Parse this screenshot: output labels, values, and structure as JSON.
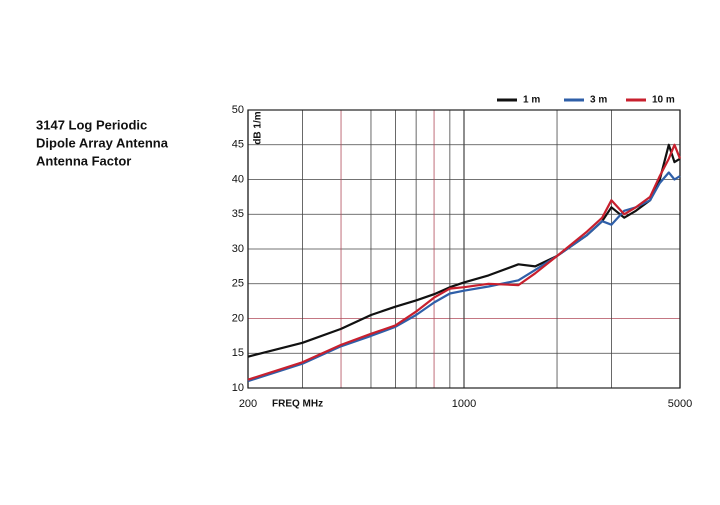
{
  "chart_data": {
    "type": "line",
    "title": [
      "3147 Log Periodic",
      "Dipole Array Antenna",
      "Antenna Factor"
    ],
    "xlabel": "FREQ MHz",
    "ylabel": "dB 1/m",
    "xscale": "log",
    "x": [
      200,
      300,
      400,
      500,
      600,
      700,
      800,
      900,
      1000,
      1200,
      1500,
      1700,
      2000,
      2500,
      2800,
      3000,
      3300,
      3600,
      4000,
      4300,
      4600,
      4800,
      5000
    ],
    "series": [
      {
        "name": "1 m",
        "color": "#111111",
        "values": [
          14.5,
          16.5,
          18.5,
          20.5,
          21.7,
          22.6,
          23.5,
          24.5,
          25.2,
          26.2,
          27.8,
          27.5,
          29,
          32,
          34,
          36,
          34.5,
          35.5,
          37,
          40,
          45,
          42.5,
          43
        ]
      },
      {
        "name": "3 m",
        "color": "#2f5fa8",
        "values": [
          11,
          13.5,
          16,
          17.5,
          18.8,
          20.5,
          22.3,
          23.6,
          24,
          24.6,
          25.5,
          27,
          29,
          32,
          34,
          33.5,
          35.5,
          36,
          37,
          39.5,
          41,
          40,
          40.5
        ]
      },
      {
        "name": "10 m",
        "color": "#c8202e",
        "values": [
          11.2,
          13.7,
          16.2,
          17.8,
          19,
          21,
          23,
          24.3,
          24.5,
          25,
          24.8,
          26.5,
          29,
          32.5,
          34.5,
          37,
          35,
          36,
          37.5,
          40.5,
          43,
          45,
          43
        ]
      }
    ],
    "xlim": [
      200,
      5000
    ],
    "xticks": [
      200,
      1000,
      5000
    ],
    "x_minor_grid": [
      300,
      400,
      500,
      600,
      700,
      800,
      900,
      2000,
      3000
    ],
    "ylim": [
      10,
      50
    ],
    "yticks": [
      10,
      15,
      20,
      25,
      30,
      35,
      40,
      45,
      50
    ],
    "grid": true,
    "grid_color": "#444444",
    "highlight_grid_x": [
      400,
      800
    ],
    "highlight_grid_y": [
      20
    ],
    "highlight_color": "#b04a5a",
    "legend": "top-right"
  }
}
